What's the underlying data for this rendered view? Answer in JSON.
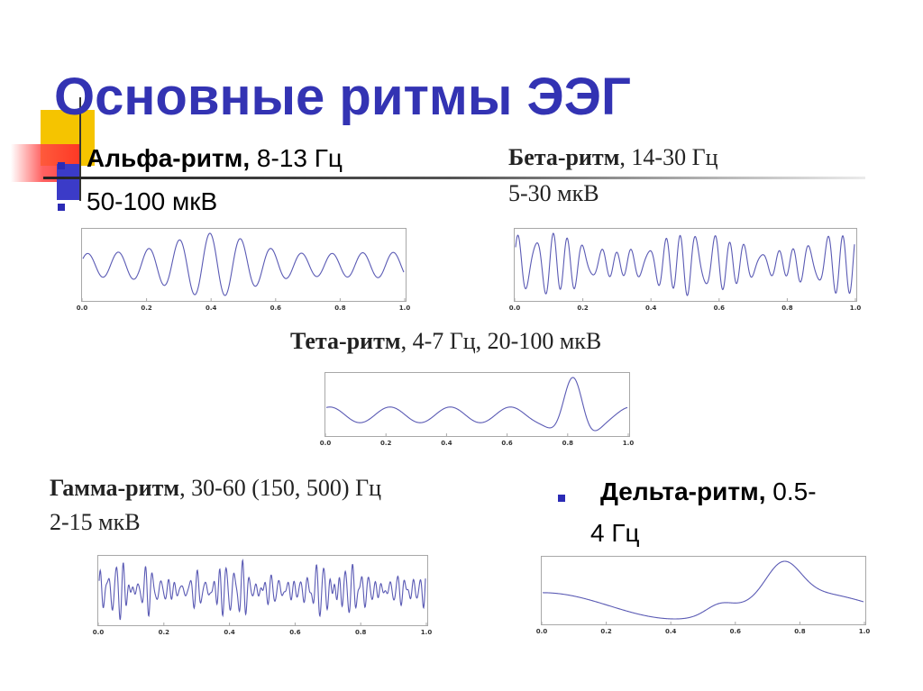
{
  "title": "Основные ритмы ЭЭГ",
  "alpha": {
    "name": "Альфа-ритм,",
    "freq": " 8-13 Гц",
    "amp": "50-100 мкВ"
  },
  "beta": {
    "name": "Бета-ритм",
    "freq": ", 14-30 Гц",
    "amp": "5-30 мкВ"
  },
  "theta": {
    "name": "Тета-ритм",
    "rest": ", 4-7 Гц, 20-100 мкВ"
  },
  "gamma": {
    "name": "Гамма-ритм",
    "freq": ", 30-60 (150, 500) Гц",
    "amp": "2-15 мкВ"
  },
  "delta": {
    "name": "Дельта-ритм,",
    "freq_a": " 0.5-",
    "freq_b": "4 Гц"
  },
  "chart_data": [
    {
      "type": "line",
      "name": "alpha",
      "x_ticks": [
        "0.0",
        "0.2",
        "0.4",
        "0.6",
        "0.8",
        "1.0"
      ],
      "xlim": [
        0,
        1
      ],
      "line_color": "#5a5ab4"
    },
    {
      "type": "line",
      "name": "beta",
      "x_ticks": [
        "0.0",
        "0.2",
        "0.4",
        "0.6",
        "0.8",
        "1.0"
      ],
      "xlim": [
        0,
        1
      ],
      "line_color": "#5a5ab4"
    },
    {
      "type": "line",
      "name": "theta",
      "x_ticks": [
        "0.0",
        "0.2",
        "0.4",
        "0.6",
        "0.8",
        "1.0"
      ],
      "xlim": [
        0,
        1
      ],
      "line_color": "#5a5ab4"
    },
    {
      "type": "line",
      "name": "gamma",
      "x_ticks": [
        "0.0",
        "0.2",
        "0.4",
        "0.6",
        "0.8",
        "1.0"
      ],
      "xlim": [
        0,
        1
      ],
      "line_color": "#5a5ab4"
    },
    {
      "type": "line",
      "name": "delta",
      "x_ticks": [
        "0.0",
        "0.2",
        "0.4",
        "0.6",
        "0.8",
        "1.0"
      ],
      "xlim": [
        0,
        1
      ],
      "line_color": "#5a5ab4"
    }
  ]
}
